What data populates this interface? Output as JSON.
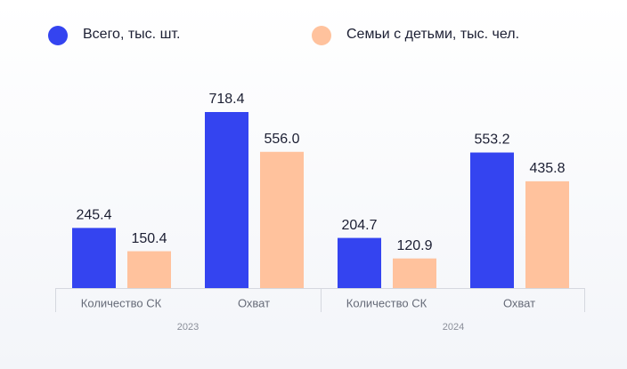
{
  "chart_data": {
    "type": "bar",
    "categories": [
      "Количество СК",
      "Охват",
      "Количество СК",
      "Охват"
    ],
    "groups": [
      "2023",
      "2024"
    ],
    "series": [
      {
        "name": "Всего, тыс. шт.",
        "color": "#3444f0",
        "values": [
          245.4,
          718.4,
          204.7,
          553.2
        ]
      },
      {
        "name": "Семьи с детьми, тыс. чел.",
        "color": "#ffc29d",
        "values": [
          150.4,
          556,
          120.9,
          435.8
        ],
        "value_labels": [
          "150.4",
          "556.0",
          "120.9",
          "435.8"
        ]
      }
    ]
  }
}
